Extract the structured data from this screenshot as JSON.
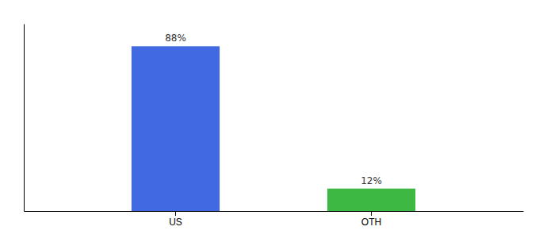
{
  "chart_data": {
    "type": "bar",
    "categories": [
      "US",
      "OTH"
    ],
    "values": [
      88,
      12
    ],
    "value_labels": [
      "88%",
      "12%"
    ],
    "colors": [
      "#4169e1",
      "#3cb843"
    ],
    "ylim": [
      0,
      100
    ],
    "data_labels": true,
    "tick_labels": "x",
    "grid": false
  }
}
